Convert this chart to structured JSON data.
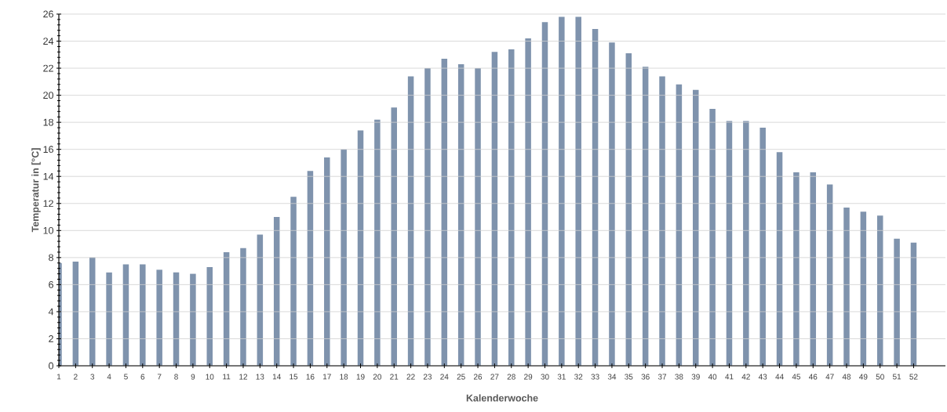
{
  "chart_data": {
    "type": "bar",
    "xlabel": "Kalenderwoche",
    "ylabel": "Temperatur in [°C]",
    "categories": [
      "1",
      "2",
      "3",
      "4",
      "5",
      "6",
      "7",
      "8",
      "9",
      "10",
      "11",
      "12",
      "13",
      "14",
      "15",
      "16",
      "17",
      "18",
      "19",
      "20",
      "21",
      "22",
      "23",
      "24",
      "25",
      "26",
      "27",
      "28",
      "29",
      "30",
      "31",
      "32",
      "33",
      "34",
      "35",
      "36",
      "37",
      "38",
      "39",
      "40",
      "41",
      "42",
      "43",
      "44",
      "45",
      "46",
      "47",
      "48",
      "49",
      "50",
      "51",
      "52"
    ],
    "values": [
      7.6,
      7.7,
      8.0,
      6.9,
      7.5,
      7.5,
      7.1,
      6.9,
      6.8,
      7.3,
      8.4,
      8.7,
      9.7,
      11.0,
      12.5,
      14.4,
      15.4,
      16.0,
      17.4,
      18.2,
      19.1,
      21.4,
      22.0,
      22.7,
      22.3,
      22.0,
      23.2,
      23.4,
      24.2,
      25.4,
      25.8,
      25.8,
      24.9,
      23.9,
      23.1,
      22.1,
      21.4,
      20.8,
      20.4,
      19.0,
      18.1,
      18.1,
      17.6,
      15.8,
      14.3,
      14.3,
      13.4,
      11.7,
      11.4,
      11.1,
      9.4,
      9.1
    ],
    "color": "#7f93ad",
    "ylim": [
      0,
      26
    ],
    "yticks": [
      0,
      2,
      4,
      6,
      8,
      10,
      12,
      14,
      16,
      18,
      20,
      22,
      24,
      26
    ],
    "grid": "y"
  }
}
